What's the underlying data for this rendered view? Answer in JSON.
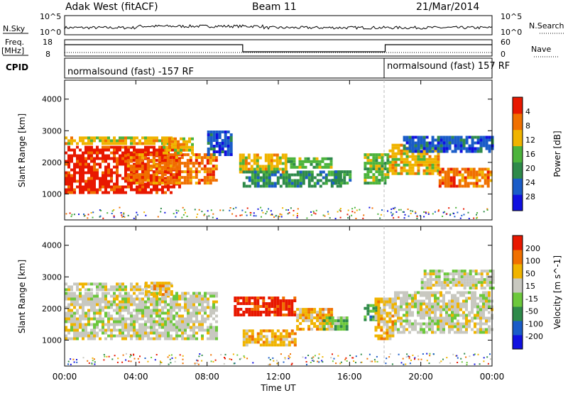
{
  "header": {
    "station": "Adak West (fitACF)",
    "beam": "Beam 11",
    "date": "21/Mar/2014"
  },
  "noise_panel": {
    "left_label": "N.Sky",
    "right_label": "N.Search",
    "left_ticks": [
      "10^5",
      "10^0"
    ],
    "right_ticks": [
      "10^5",
      "10^0"
    ]
  },
  "freq_panel": {
    "left_label_1": "Freq.",
    "left_label_2": "[MHz]",
    "right_label": "Nave",
    "left_ticks": [
      "18",
      "8"
    ],
    "right_ticks": [
      "60",
      "0"
    ],
    "freq_steps": [
      {
        "t": 0.0,
        "level": "high"
      },
      {
        "t": 10.0,
        "level": "low"
      },
      {
        "t": 18.0,
        "level": "high"
      },
      {
        "t": 24.0,
        "level": "high"
      }
    ]
  },
  "cpid_panel": {
    "label": "CPID",
    "segments": [
      {
        "text": "normalsound (fast) -157 RF"
      },
      {
        "text": "normalsound (fast) 157 RF"
      }
    ]
  },
  "x_axis": {
    "label": "Time UT",
    "ticks": [
      "00:00",
      "04:00",
      "08:00",
      "12:00",
      "16:00",
      "20:00",
      "00:00"
    ]
  },
  "chart_data": [
    {
      "type": "heatmap",
      "quantity": "Power",
      "ylabel": "Slant Range [km]",
      "yticks": [
        1000,
        2000,
        3000,
        4000
      ],
      "xlim": [
        0,
        24
      ],
      "ylim": [
        180,
        4600
      ],
      "colorbar": {
        "label": "Power [dB]",
        "ticks": [
          "4",
          "8",
          "12",
          "16",
          "20",
          "24",
          "28"
        ],
        "colors": [
          "#1010e0",
          "#1a5cc8",
          "#2e8a4a",
          "#4cb43c",
          "#f0b400",
          "#f07000",
          "#e81800"
        ]
      },
      "regions": [
        {
          "t0": 0.0,
          "t1": 6.5,
          "r0": 1000,
          "r1": 2500,
          "level": 6
        },
        {
          "t0": 3.5,
          "t1": 8.5,
          "r0": 1300,
          "r1": 2200,
          "level": 5
        },
        {
          "t0": 0.0,
          "t1": 6.0,
          "r0": 2550,
          "r1": 2750,
          "level": 4
        },
        {
          "t0": 5.5,
          "t1": 7.2,
          "r0": 2250,
          "r1": 2700,
          "level": 4
        },
        {
          "t0": 8.0,
          "t1": 9.3,
          "r0": 2200,
          "r1": 3000,
          "level": 1
        },
        {
          "t0": 9.8,
          "t1": 12.5,
          "r0": 1650,
          "r1": 2200,
          "level": 4
        },
        {
          "t0": 12.5,
          "t1": 15.0,
          "r0": 1800,
          "r1": 2100,
          "level": 3
        },
        {
          "t0": 10.0,
          "t1": 15.5,
          "r0": 1200,
          "r1": 1650,
          "level": 2
        },
        {
          "t0": 15.0,
          "t1": 16.0,
          "r0": 1300,
          "r1": 1700,
          "level": 2
        },
        {
          "t0": 16.8,
          "t1": 18.2,
          "r0": 1300,
          "r1": 2200,
          "level": 3
        },
        {
          "t0": 18.2,
          "t1": 21.0,
          "r0": 1600,
          "r1": 2500,
          "level": 4
        },
        {
          "t0": 21.0,
          "t1": 24.0,
          "r0": 1200,
          "r1": 1800,
          "level": 5
        },
        {
          "t0": 19.0,
          "t1": 24.0,
          "r0": 2300,
          "r1": 2800,
          "level": 1
        }
      ]
    },
    {
      "type": "heatmap",
      "quantity": "Velocity",
      "ylabel": "Slant Range [km]",
      "yticks": [
        1000,
        2000,
        3000,
        4000
      ],
      "xlim": [
        0,
        24
      ],
      "ylim": [
        180,
        4600
      ],
      "colorbar": {
        "label": "Velocity [m s^-1]",
        "ticks": [
          "200",
          "100",
          "50",
          "15",
          "-15",
          "-50",
          "-100",
          "-200"
        ],
        "colors": [
          "#1010e0",
          "#1a5cc8",
          "#2e8a4a",
          "#6cc83c",
          "#c8c8c0",
          "#f0b400",
          "#f07000",
          "#e81800"
        ]
      },
      "regions": [
        {
          "t0": 0.0,
          "t1": 8.5,
          "r0": 1000,
          "r1": 2500,
          "level": 4
        },
        {
          "t0": 0.0,
          "t1": 6.0,
          "r0": 2550,
          "r1": 2750,
          "level": 4
        },
        {
          "t0": 4.5,
          "t1": 6.0,
          "r0": 2400,
          "r1": 2800,
          "level": 5
        },
        {
          "t0": 9.5,
          "t1": 13.0,
          "r0": 1750,
          "r1": 2300,
          "level": 7
        },
        {
          "t0": 13.0,
          "t1": 15.0,
          "r0": 1300,
          "r1": 2000,
          "level": 5
        },
        {
          "t0": 14.5,
          "t1": 15.8,
          "r0": 1300,
          "r1": 1700,
          "level": 3
        },
        {
          "t0": 10.0,
          "t1": 13.0,
          "r0": 800,
          "r1": 1300,
          "level": 5
        },
        {
          "t0": 16.8,
          "t1": 17.6,
          "r0": 1600,
          "r1": 2100,
          "level": 2
        },
        {
          "t0": 17.4,
          "t1": 18.5,
          "r0": 1000,
          "r1": 2300,
          "level": 5
        },
        {
          "t0": 18.5,
          "t1": 24.0,
          "r0": 1200,
          "r1": 2500,
          "level": 4
        },
        {
          "t0": 20.0,
          "t1": 24.0,
          "r0": 2600,
          "r1": 3200,
          "level": 4
        }
      ]
    }
  ]
}
